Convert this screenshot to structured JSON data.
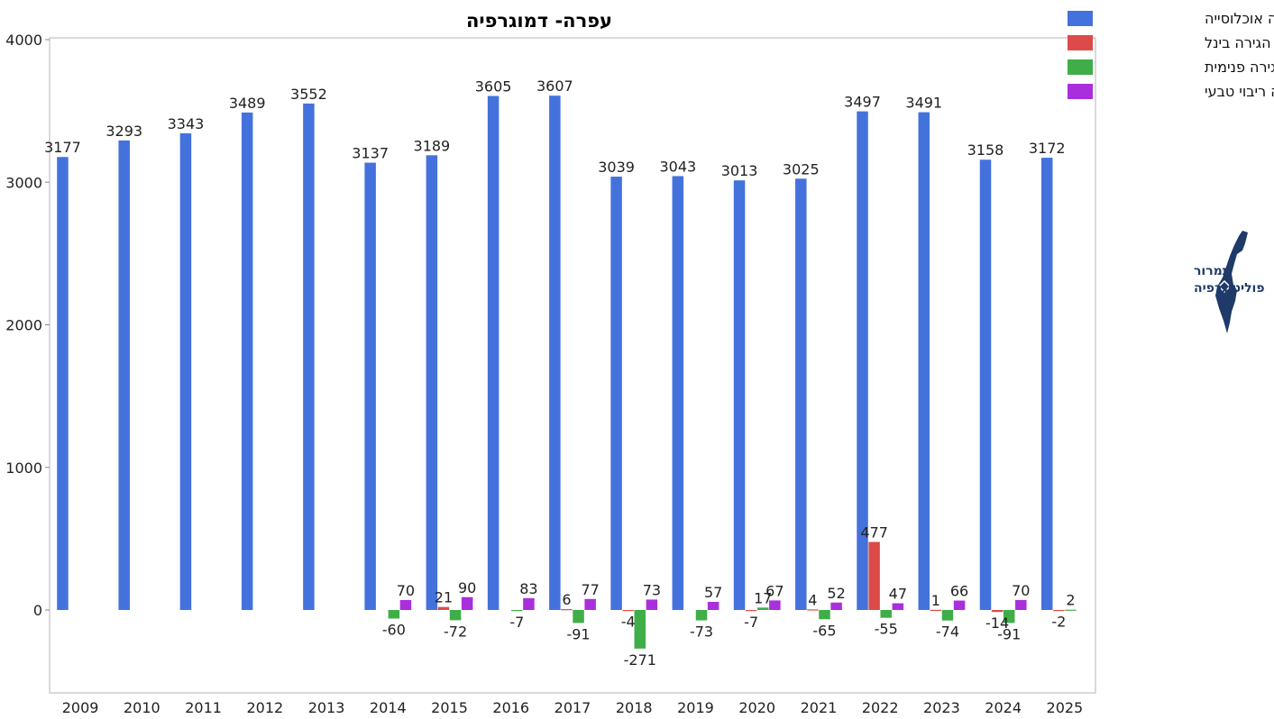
{
  "chart_data": {
    "type": "bar",
    "title": "עפרה- דמוגרפיה",
    "xlabel": "",
    "ylabel": "",
    "ylim": [
      -600,
      4000
    ],
    "yticks": [
      0,
      1000,
      2000,
      3000,
      4000
    ],
    "grid": false,
    "legend_position": "top-right",
    "categories": [
      "2009",
      "2010",
      "2011",
      "2012",
      "2013",
      "2014",
      "2015",
      "2016",
      "2017",
      "2018",
      "2019",
      "2020",
      "2021",
      "2022",
      "2023",
      "2024",
      "2025"
    ],
    "series": [
      {
        "name": "עפרה אוכלוסייה",
        "color": "#4472dc",
        "values": [
          3177,
          3293,
          3343,
          3489,
          3552,
          3137,
          3189,
          3605,
          3607,
          3039,
          3043,
          3013,
          3025,
          3497,
          3491,
          3158,
          3172
        ]
      },
      {
        "name": "עפרה מאזן הגירה בינל",
        "color": "#dc4a4a",
        "values": [
          null,
          null,
          null,
          null,
          null,
          null,
          21,
          null,
          6,
          -4,
          null,
          -7,
          4,
          477,
          1,
          -14,
          -2
        ]
      },
      {
        "name": "עפרה מאזן הגירה פנימית",
        "color": "#3fae49",
        "values": [
          null,
          null,
          null,
          null,
          null,
          -60,
          -72,
          -7,
          -91,
          -271,
          -73,
          17,
          -65,
          -55,
          -74,
          -91,
          2
        ]
      },
      {
        "name": "עפרה ריבוי טבעי",
        "color": "#a92fdc",
        "values": [
          null,
          null,
          null,
          null,
          null,
          70,
          90,
          83,
          77,
          73,
          57,
          67,
          52,
          47,
          66,
          70,
          null
        ]
      }
    ]
  },
  "logo": {
    "line1": "תמרור",
    "line2": "פוליטוגרפיה",
    "color": "#1f3a68"
  }
}
